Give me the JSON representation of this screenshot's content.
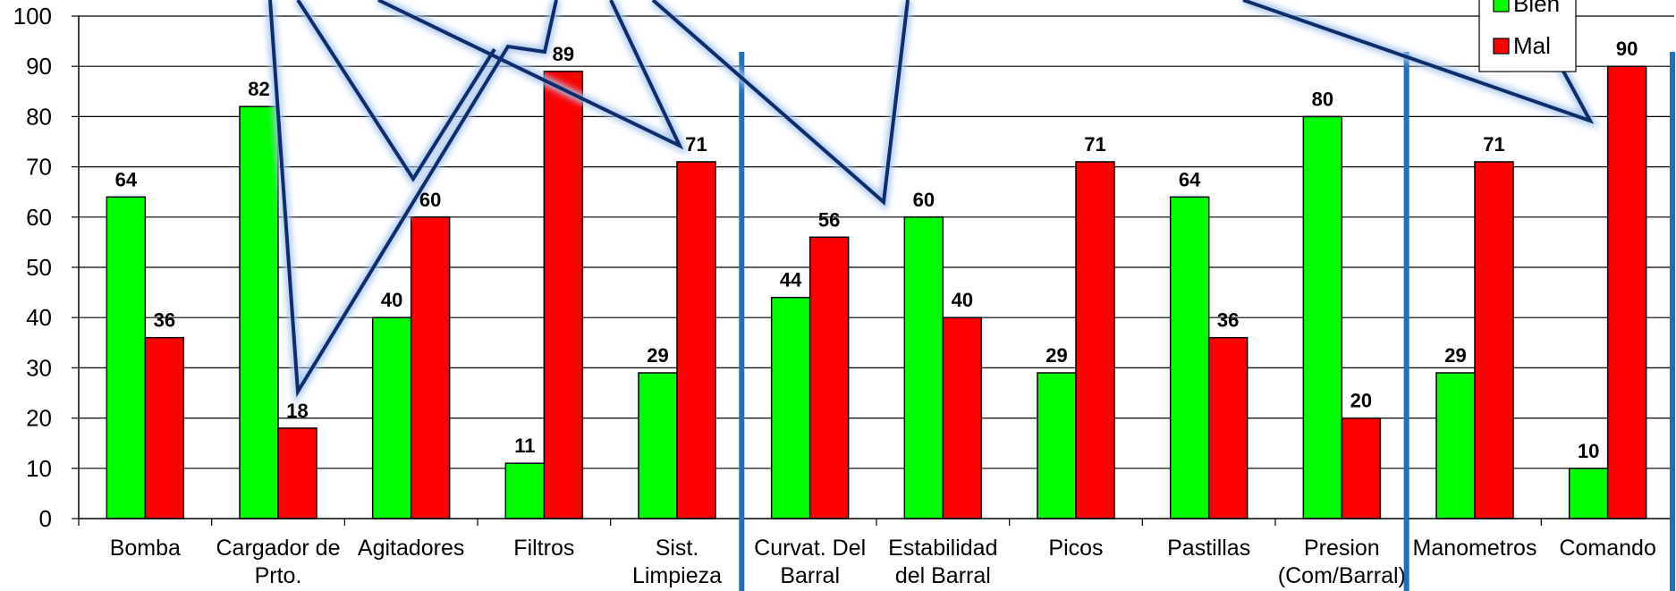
{
  "chart_data": {
    "type": "bar",
    "categories": [
      [
        "Bomba"
      ],
      [
        "Cargador de",
        "Prto."
      ],
      [
        "Agitadores"
      ],
      [
        "Filtros"
      ],
      [
        "Sist.",
        "Limpieza"
      ],
      [
        "Curvat. Del",
        "Barral"
      ],
      [
        "Estabilidad",
        "del Barral"
      ],
      [
        "Picos"
      ],
      [
        "Pastillas"
      ],
      [
        "Presion",
        "(Com/Barral)"
      ],
      [
        "Manometros"
      ],
      [
        "Comando"
      ]
    ],
    "series": [
      {
        "name": "Bien",
        "color": "#00ff00",
        "values": [
          64,
          82,
          40,
          11,
          29,
          44,
          60,
          29,
          64,
          80,
          29,
          10
        ]
      },
      {
        "name": "Mal",
        "color": "#ff0000",
        "values": [
          36,
          18,
          60,
          89,
          71,
          56,
          40,
          71,
          36,
          20,
          71,
          90
        ]
      }
    ],
    "ylim": [
      0,
      100
    ],
    "yticks": [
      0,
      10,
      20,
      30,
      40,
      50,
      60,
      70,
      80,
      90,
      100
    ],
    "grid": true,
    "legend": "top-right",
    "separator_color": "#1f6fbf",
    "separators_after_category": [
      4,
      9,
      11
    ]
  }
}
